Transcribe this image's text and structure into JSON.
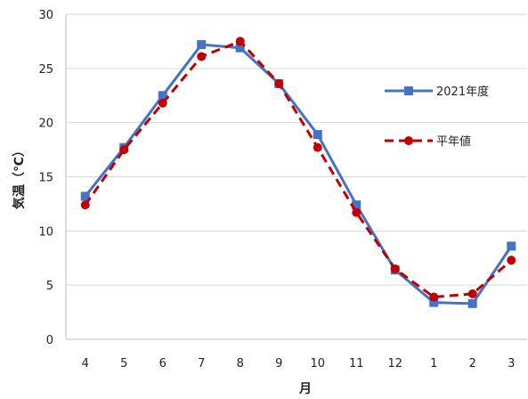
{
  "chart_data": {
    "type": "line",
    "title": "",
    "xlabel": "月",
    "ylabel": "気温（℃）",
    "categories": [
      "4",
      "5",
      "6",
      "7",
      "8",
      "9",
      "10",
      "11",
      "12",
      "1",
      "2",
      "3"
    ],
    "ylim": [
      0,
      30
    ],
    "yticks": [
      0,
      5,
      10,
      15,
      20,
      25,
      30
    ],
    "grid": true,
    "legend_position": "right",
    "series": [
      {
        "name": "2021年度",
        "values": [
          13.2,
          17.7,
          22.5,
          27.2,
          26.9,
          23.6,
          18.9,
          12.4,
          6.4,
          3.4,
          3.3,
          8.6
        ],
        "color": "#4472C4",
        "style": "solid",
        "marker": "square"
      },
      {
        "name": "平年値",
        "values": [
          12.4,
          17.5,
          21.8,
          26.1,
          27.5,
          23.6,
          17.7,
          11.7,
          6.5,
          3.9,
          4.2,
          7.3
        ],
        "color": "#C00000",
        "style": "dashed",
        "marker": "circle"
      }
    ]
  }
}
